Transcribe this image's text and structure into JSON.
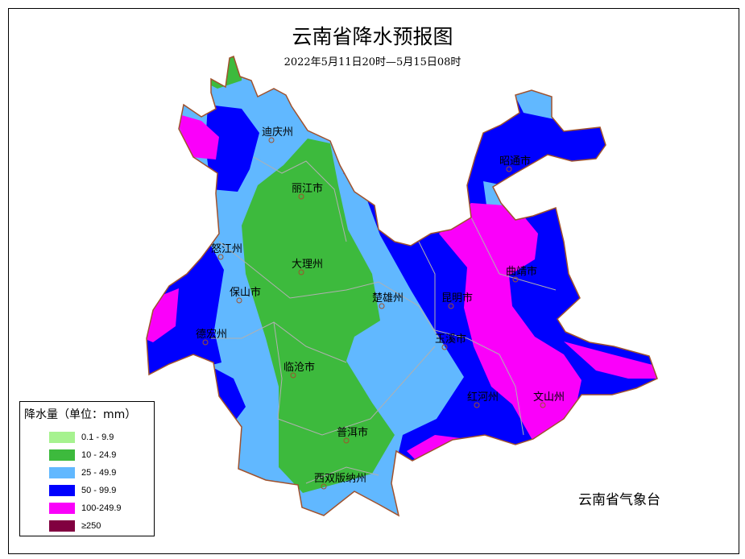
{
  "title": "云南省降水预报图",
  "subtitle": "2022年5月11日20时—5月15日08时",
  "agency": "云南省气象台",
  "legend": {
    "title": "降水量（单位：mm）",
    "items": [
      {
        "label": "0.1 - 9.9",
        "color": "#a6f28f"
      },
      {
        "label": "10 - 24.9",
        "color": "#3dba3d"
      },
      {
        "label": "25 - 49.9",
        "color": "#61b8ff"
      },
      {
        "label": "50 - 99.9",
        "color": "#0000fe"
      },
      {
        "label": "100-249.9",
        "color": "#fa00fa"
      },
      {
        "label": "≥250",
        "color": "#810040"
      }
    ]
  },
  "cities": [
    "迪庆州",
    "丽江市",
    "怒江州",
    "大理州",
    "保山市",
    "楚雄州",
    "昆明市",
    "曲靖市",
    "昭通市",
    "德宏州",
    "玉溪市",
    "临沧市",
    "红河州",
    "文山州",
    "普洱市",
    "西双版纳州"
  ]
}
